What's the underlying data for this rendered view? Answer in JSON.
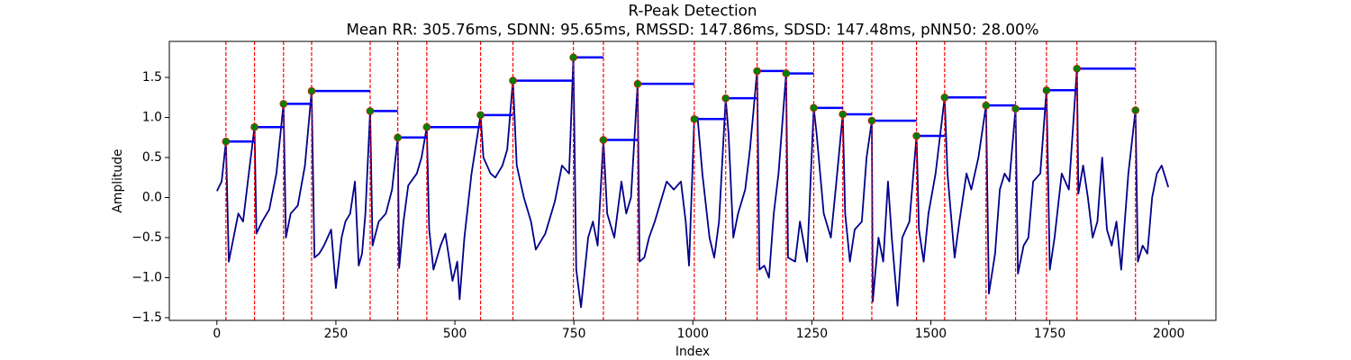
{
  "chart_data": {
    "type": "line",
    "title": "R-Peak Detection",
    "subtitle": "Mean RR: 305.76ms, SDNN: 95.65ms, RMSSD: 147.86ms, SDSD: 147.48ms, pNN50: 28.00%",
    "xlabel": "Index",
    "ylabel": "Amplitude",
    "xlim": [
      -99.95,
      2098.95
    ],
    "ylim": [
      -1.534,
      1.95
    ],
    "xticks": [
      0,
      250,
      500,
      750,
      1000,
      1250,
      1500,
      1750,
      2000
    ],
    "yticks": [
      {
        "value": -1.5,
        "label": "−1.5"
      },
      {
        "value": -1.0,
        "label": "−1.0"
      },
      {
        "value": -0.5,
        "label": "−0.5"
      },
      {
        "value": 0,
        "label": "0.0"
      },
      0.5,
      {
        "value": 1.0,
        "label": "1.0"
      },
      1.5
    ],
    "series": [
      {
        "color": "#00008b",
        "x": [
          0,
          10,
          19,
          25,
          35,
          45,
          55,
          65,
          79,
          83,
          95,
          110,
          125,
          140,
          145,
          155,
          170,
          185,
          199,
          205,
          215,
          225,
          240,
          250,
          262,
          270,
          280,
          290,
          298,
          305,
          312,
          322,
          327,
          340,
          355,
          368,
          380,
          383,
          392,
          402,
          420,
          430,
          441,
          446,
          455,
          470,
          480,
          495,
          505,
          510,
          520,
          535,
          554,
          560,
          575,
          585,
          600,
          610,
          622,
          630,
          645,
          660,
          670,
          690,
          710,
          725,
          740,
          749,
          755,
          765,
          780,
          790,
          800,
          812,
          820,
          835,
          850,
          860,
          870,
          884,
          888,
          898,
          908,
          920,
          930,
          945,
          960,
          975,
          985,
          992,
          1003,
          1010,
          1020,
          1035,
          1045,
          1055,
          1069,
          1075,
          1085,
          1095,
          1110,
          1120,
          1135,
          1140,
          1150,
          1160,
          1170,
          1180,
          1196,
          1200,
          1215,
          1225,
          1240,
          1254,
          1260,
          1275,
          1290,
          1300,
          1315,
          1320,
          1330,
          1340,
          1355,
          1365,
          1376,
          1378,
          1390,
          1400,
          1410,
          1418,
          1430,
          1440,
          1455,
          1470,
          1475,
          1485,
          1495,
          1510,
          1529,
          1535,
          1550,
          1560,
          1575,
          1585,
          1600,
          1616,
          1622,
          1635,
          1645,
          1655,
          1665,
          1678,
          1683,
          1695,
          1705,
          1715,
          1730,
          1743,
          1750,
          1760,
          1775,
          1790,
          1807,
          1810,
          1820,
          1830,
          1840,
          1850,
          1860,
          1870,
          1880,
          1890,
          1900,
          1915,
          1930,
          1935,
          1945,
          1955,
          1965,
          1975,
          1985,
          1999
        ],
        "values": [
          0.08,
          0.2,
          0.7,
          -0.8,
          -0.5,
          -0.2,
          -0.3,
          0.2,
          0.88,
          -0.45,
          -0.3,
          -0.15,
          0.3,
          1.17,
          -0.5,
          -0.2,
          -0.1,
          0.4,
          1.33,
          -0.75,
          -0.7,
          -0.6,
          -0.4,
          -1.13,
          -0.5,
          -0.3,
          -0.2,
          0.2,
          -0.85,
          -0.7,
          -0.2,
          1.08,
          -0.6,
          -0.3,
          -0.2,
          0.1,
          0.75,
          -0.88,
          -0.3,
          0.15,
          0.3,
          0.5,
          0.88,
          -0.4,
          -0.9,
          -0.6,
          -0.45,
          -1.04,
          -0.8,
          -1.27,
          -0.5,
          0.3,
          1.03,
          0.5,
          0.3,
          0.25,
          0.4,
          0.6,
          1.46,
          0.4,
          0.0,
          -0.3,
          -0.65,
          -0.45,
          -0.05,
          0.4,
          0.3,
          1.75,
          -0.9,
          -1.37,
          -0.5,
          -0.3,
          -0.6,
          0.72,
          -0.2,
          -0.5,
          0.2,
          -0.2,
          0.0,
          1.42,
          -0.8,
          -0.75,
          -0.5,
          -0.3,
          -0.1,
          0.2,
          0.1,
          0.2,
          -0.3,
          -0.85,
          0.98,
          1.0,
          0.3,
          -0.5,
          -0.75,
          -0.3,
          1.24,
          0.8,
          -0.5,
          -0.2,
          0.1,
          0.6,
          1.58,
          -0.9,
          -0.85,
          -1.0,
          -0.2,
          0.3,
          1.55,
          -0.75,
          -0.8,
          -0.3,
          -0.8,
          1.12,
          0.8,
          -0.2,
          -0.5,
          0.1,
          1.04,
          -0.2,
          -0.8,
          -0.4,
          -0.3,
          0.5,
          0.96,
          -1.3,
          -0.5,
          -0.8,
          0.2,
          -0.5,
          -1.35,
          -0.5,
          -0.3,
          0.77,
          -0.4,
          -0.8,
          -0.2,
          0.3,
          1.25,
          0.3,
          -0.75,
          -0.3,
          0.3,
          0.1,
          0.5,
          1.15,
          -1.2,
          -0.7,
          0.1,
          0.3,
          0.2,
          1.11,
          -0.95,
          -0.6,
          -0.5,
          0.2,
          0.3,
          1.34,
          -0.9,
          -0.5,
          0.3,
          0.1,
          1.61,
          0.05,
          0.4,
          0.0,
          -0.5,
          -0.3,
          0.5,
          -0.4,
          -0.6,
          -0.3,
          -0.9,
          0.3,
          1.09,
          -0.8,
          -0.6,
          -0.7,
          0.0,
          0.3,
          0.4,
          0.13
        ]
      }
    ],
    "peaks": {
      "color": "green",
      "line_color": "red",
      "interval_color": "blue",
      "x": [
        19,
        79,
        140,
        199,
        322,
        380,
        441,
        554,
        622,
        749,
        812,
        884,
        1003,
        1069,
        1135,
        1196,
        1254,
        1315,
        1376,
        1470,
        1529,
        1616,
        1678,
        1743,
        1807,
        1930
      ],
      "values": [
        0.7,
        0.88,
        1.17,
        1.33,
        1.08,
        0.75,
        0.88,
        1.03,
        1.46,
        1.75,
        0.72,
        1.42,
        0.98,
        1.24,
        1.58,
        1.55,
        1.12,
        1.04,
        0.96,
        0.77,
        1.25,
        1.15,
        1.11,
        1.34,
        1.61,
        1.09
      ]
    }
  }
}
